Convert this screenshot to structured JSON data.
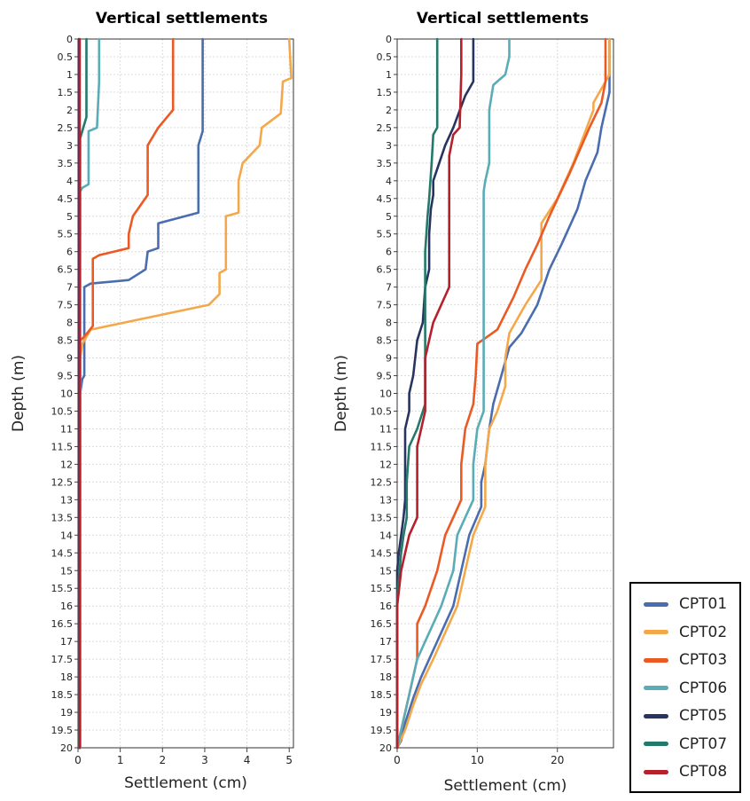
{
  "chart_data": [
    {
      "type": "line",
      "title": "Vertical settlements",
      "xlabel": "Settlement (cm)",
      "ylabel": "Depth (m)",
      "xlim": [
        0,
        5.1
      ],
      "ylim": [
        0,
        20
      ],
      "xticks": [
        "0",
        "1",
        "2",
        "3",
        "4",
        "5"
      ],
      "yticks": [
        "0",
        "0.5",
        "1",
        "1.5",
        "2",
        "2.5",
        "3",
        "3.5",
        "4",
        "4.5",
        "5",
        "5.5",
        "6",
        "6.5",
        "7",
        "7.5",
        "8",
        "8.5",
        "9",
        "9.5",
        "10",
        "10.5",
        "11",
        "11.5",
        "12",
        "12.5",
        "13",
        "13.5",
        "14",
        "14.5",
        "15",
        "15.5",
        "16",
        "16.5",
        "17",
        "17.5",
        "18",
        "18.5",
        "19",
        "19.5",
        "20"
      ],
      "grid": true,
      "y_inverted": true,
      "series": [
        {
          "name": "CPT01",
          "points": [
            [
              2.95,
              0
            ],
            [
              2.95,
              2.6
            ],
            [
              2.85,
              3.0
            ],
            [
              2.85,
              4.9
            ],
            [
              1.9,
              5.2
            ],
            [
              1.9,
              5.9
            ],
            [
              1.65,
              6.0
            ],
            [
              1.6,
              6.5
            ],
            [
              1.2,
              6.8
            ],
            [
              0.3,
              6.9
            ],
            [
              0.15,
              7.0
            ],
            [
              0.15,
              9.5
            ],
            [
              0.1,
              9.6
            ],
            [
              0.05,
              10
            ],
            [
              0.05,
              20
            ]
          ]
        },
        {
          "name": "CPT02",
          "points": [
            [
              5.0,
              0
            ],
            [
              5.05,
              1.1
            ],
            [
              4.85,
              1.2
            ],
            [
              4.8,
              2.1
            ],
            [
              4.35,
              2.5
            ],
            [
              4.3,
              3.0
            ],
            [
              3.9,
              3.5
            ],
            [
              3.8,
              4.0
            ],
            [
              3.8,
              4.9
            ],
            [
              3.5,
              5.0
            ],
            [
              3.5,
              6.5
            ],
            [
              3.35,
              6.6
            ],
            [
              3.35,
              7.2
            ],
            [
              3.1,
              7.5
            ],
            [
              0.3,
              8.2
            ],
            [
              0.1,
              8.6
            ],
            [
              0.05,
              9.0
            ],
            [
              0.05,
              13.5
            ],
            [
              0.03,
              20
            ]
          ]
        },
        {
          "name": "CPT03",
          "points": [
            [
              2.25,
              0
            ],
            [
              2.25,
              2.0
            ],
            [
              1.9,
              2.5
            ],
            [
              1.65,
              3.0
            ],
            [
              1.65,
              4.4
            ],
            [
              1.3,
              5.0
            ],
            [
              1.2,
              5.5
            ],
            [
              1.2,
              5.9
            ],
            [
              0.5,
              6.1
            ],
            [
              0.35,
              6.2
            ],
            [
              0.35,
              8.1
            ],
            [
              0.15,
              8.4
            ],
            [
              0.05,
              8.5
            ],
            [
              0.05,
              20
            ]
          ]
        },
        {
          "name": "CPT06",
          "points": [
            [
              0.5,
              0
            ],
            [
              0.5,
              1.2
            ],
            [
              0.45,
              2.5
            ],
            [
              0.25,
              2.6
            ],
            [
              0.25,
              4.1
            ],
            [
              0.1,
              4.2
            ],
            [
              0.05,
              4.3
            ],
            [
              0.05,
              20
            ]
          ]
        },
        {
          "name": "CPT05",
          "points": [
            [
              0.02,
              0
            ],
            [
              0.02,
              20
            ]
          ]
        },
        {
          "name": "CPT07",
          "points": [
            [
              0.2,
              0
            ],
            [
              0.2,
              2.2
            ],
            [
              0.1,
              2.6
            ],
            [
              0.05,
              2.8
            ],
            [
              0.03,
              20
            ]
          ]
        },
        {
          "name": "CPT08",
          "points": [
            [
              0.04,
              0
            ],
            [
              0.04,
              20
            ]
          ]
        }
      ]
    },
    {
      "type": "line",
      "title": "Vertical settlements",
      "xlabel": "Settlement (cm)",
      "ylabel": "Depth (m)",
      "xlim": [
        0,
        27
      ],
      "ylim": [
        0,
        20
      ],
      "xticks": [
        "0",
        "10",
        "20"
      ],
      "yticks": [
        "0",
        "0.5",
        "1",
        "1.5",
        "2",
        "2.5",
        "3",
        "3.5",
        "4",
        "4.5",
        "5",
        "5.5",
        "6",
        "6.5",
        "7",
        "7.5",
        "8",
        "8.5",
        "9",
        "9.5",
        "10",
        "10.5",
        "11",
        "11.5",
        "12",
        "12.5",
        "13",
        "13.5",
        "14",
        "14.5",
        "15",
        "15.5",
        "16",
        "16.5",
        "17",
        "17.5",
        "18",
        "18.5",
        "19",
        "19.5",
        "20"
      ],
      "grid": true,
      "y_inverted": true,
      "series": [
        {
          "name": "CPT01",
          "points": [
            [
              26.5,
              0
            ],
            [
              26.5,
              1.5
            ],
            [
              25.5,
              2.5
            ],
            [
              25.0,
              3.2
            ],
            [
              23.5,
              4.0
            ],
            [
              22.5,
              4.8
            ],
            [
              20.5,
              5.8
            ],
            [
              19.0,
              6.5
            ],
            [
              17.5,
              7.5
            ],
            [
              15.5,
              8.3
            ],
            [
              14.0,
              8.7
            ],
            [
              13.0,
              9.5
            ],
            [
              12.0,
              10.3
            ],
            [
              11.5,
              11.0
            ],
            [
              11.0,
              12.0
            ],
            [
              10.5,
              12.5
            ],
            [
              10.5,
              13.2
            ],
            [
              9.0,
              14.0
            ],
            [
              8.0,
              15.0
            ],
            [
              7.0,
              16.0
            ],
            [
              6.0,
              16.5
            ],
            [
              5.0,
              17.0
            ],
            [
              4.0,
              17.5
            ],
            [
              3.0,
              18.0
            ],
            [
              2.0,
              18.6
            ],
            [
              1.0,
              19.3
            ],
            [
              0.5,
              19.8
            ],
            [
              0,
              20
            ]
          ]
        },
        {
          "name": "CPT02",
          "points": [
            [
              26.5,
              0
            ],
            [
              26.5,
              1.0
            ],
            [
              24.5,
              1.8
            ],
            [
              24.5,
              2.0
            ],
            [
              22.0,
              3.5
            ],
            [
              20.0,
              4.5
            ],
            [
              18.0,
              5.2
            ],
            [
              18.0,
              6.8
            ],
            [
              16.0,
              7.5
            ],
            [
              14.0,
              8.3
            ],
            [
              13.5,
              9.0
            ],
            [
              13.5,
              9.8
            ],
            [
              12.5,
              10.5
            ],
            [
              11.5,
              11.0
            ],
            [
              11.0,
              12.0
            ],
            [
              11.0,
              13.2
            ],
            [
              9.5,
              14.0
            ],
            [
              8.5,
              15.0
            ],
            [
              7.5,
              16.0
            ],
            [
              6.5,
              16.5
            ],
            [
              5.5,
              17.0
            ],
            [
              4.5,
              17.5
            ],
            [
              3.0,
              18.2
            ],
            [
              2.0,
              18.8
            ],
            [
              1.0,
              19.5
            ],
            [
              0,
              20
            ]
          ]
        },
        {
          "name": "CPT03",
          "points": [
            [
              26.0,
              0
            ],
            [
              26.0,
              1.2
            ],
            [
              25.5,
              1.8
            ],
            [
              24.0,
              2.5
            ],
            [
              21.5,
              3.8
            ],
            [
              19.0,
              5.0
            ],
            [
              17.5,
              5.8
            ],
            [
              16.0,
              6.5
            ],
            [
              14.5,
              7.3
            ],
            [
              12.5,
              8.2
            ],
            [
              10.0,
              8.6
            ],
            [
              9.8,
              9.5
            ],
            [
              9.5,
              10.3
            ],
            [
              8.5,
              11.0
            ],
            [
              8.0,
              12.0
            ],
            [
              8.0,
              13.0
            ],
            [
              7.0,
              13.5
            ],
            [
              6.0,
              14.0
            ],
            [
              5.0,
              15.0
            ],
            [
              3.5,
              16.0
            ],
            [
              2.5,
              16.5
            ],
            [
              2.5,
              17.5
            ],
            [
              1.5,
              18.5
            ],
            [
              0.5,
              19.5
            ],
            [
              0,
              20
            ]
          ]
        },
        {
          "name": "CPT06",
          "points": [
            [
              14.0,
              0
            ],
            [
              14.0,
              0.5
            ],
            [
              13.5,
              1.0
            ],
            [
              12.0,
              1.3
            ],
            [
              11.5,
              2.0
            ],
            [
              11.5,
              3.5
            ],
            [
              11.0,
              4.0
            ],
            [
              10.8,
              4.3
            ],
            [
              10.8,
              8.3
            ],
            [
              10.8,
              10.5
            ],
            [
              10.0,
              11.0
            ],
            [
              9.5,
              12.0
            ],
            [
              9.5,
              13.0
            ],
            [
              8.5,
              13.5
            ],
            [
              7.5,
              14.0
            ],
            [
              7.0,
              15.0
            ],
            [
              5.5,
              16.0
            ],
            [
              4.5,
              16.5
            ],
            [
              3.5,
              17.0
            ],
            [
              2.5,
              17.5
            ],
            [
              1.5,
              18.5
            ],
            [
              0.5,
              19.5
            ],
            [
              0,
              20
            ]
          ]
        },
        {
          "name": "CPT05",
          "points": [
            [
              9.5,
              0
            ],
            [
              9.5,
              1.2
            ],
            [
              8.5,
              1.6
            ],
            [
              7.0,
              2.5
            ],
            [
              6.0,
              3.0
            ],
            [
              4.5,
              4.0
            ],
            [
              4.5,
              4.4
            ],
            [
              4.2,
              4.8
            ],
            [
              4.0,
              5.5
            ],
            [
              4.0,
              6.5
            ],
            [
              3.5,
              7.0
            ],
            [
              3.2,
              8.0
            ],
            [
              2.5,
              8.5
            ],
            [
              2.0,
              9.5
            ],
            [
              1.5,
              10.0
            ],
            [
              1.5,
              10.5
            ],
            [
              1.0,
              11.0
            ],
            [
              1.0,
              12.0
            ],
            [
              1.0,
              13.0
            ],
            [
              0.8,
              13.5
            ],
            [
              0.5,
              14.0
            ],
            [
              0.2,
              14.5
            ],
            [
              0,
              15.0
            ],
            [
              0,
              20
            ]
          ]
        },
        {
          "name": "CPT07",
          "points": [
            [
              5.0,
              0
            ],
            [
              5.0,
              2.5
            ],
            [
              4.5,
              2.7
            ],
            [
              4.3,
              3.5
            ],
            [
              4.0,
              4.5
            ],
            [
              3.8,
              5.0
            ],
            [
              3.5,
              6.0
            ],
            [
              3.5,
              10.3
            ],
            [
              2.5,
              11.0
            ],
            [
              1.5,
              11.5
            ],
            [
              1.2,
              12.5
            ],
            [
              1.2,
              13.5
            ],
            [
              0.8,
              14.0
            ],
            [
              0.5,
              14.5
            ],
            [
              0.3,
              15.0
            ],
            [
              0.1,
              15.5
            ],
            [
              0,
              16.0
            ],
            [
              0,
              20
            ]
          ]
        },
        {
          "name": "CPT08",
          "points": [
            [
              8.0,
              0
            ],
            [
              8.0,
              1.0
            ],
            [
              7.8,
              2.5
            ],
            [
              7.0,
              2.7
            ],
            [
              6.5,
              3.3
            ],
            [
              6.5,
              7.0
            ],
            [
              5.5,
              7.5
            ],
            [
              4.5,
              8.0
            ],
            [
              4.0,
              8.5
            ],
            [
              3.5,
              9.0
            ],
            [
              3.5,
              10.5
            ],
            [
              3.0,
              11.0
            ],
            [
              2.5,
              11.5
            ],
            [
              2.5,
              13.5
            ],
            [
              1.5,
              14.0
            ],
            [
              1.0,
              14.5
            ],
            [
              0.5,
              15.0
            ],
            [
              0,
              16.0
            ],
            [
              0,
              20
            ]
          ]
        }
      ]
    }
  ],
  "colors": {
    "CPT01": "#4a6db0",
    "CPT02": "#f4a84a",
    "CPT03": "#ec5a24",
    "CPT06": "#5aacb6",
    "CPT05": "#27345f",
    "CPT07": "#237a6a",
    "CPT08": "#b5202a"
  },
  "legend": {
    "placement": "bottom-right",
    "items": [
      "CPT01",
      "CPT02",
      "CPT03",
      "CPT06",
      "CPT05",
      "CPT07",
      "CPT08"
    ]
  }
}
